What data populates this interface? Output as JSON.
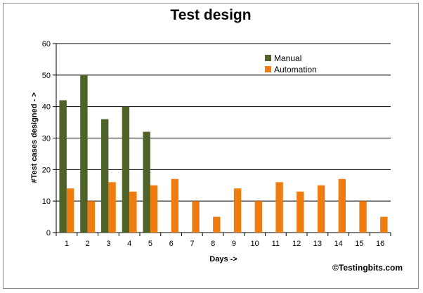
{
  "chart_data": {
    "type": "bar",
    "title": "Test design",
    "xlabel": "Days ->",
    "ylabel": "#Test cases designed - >",
    "ylim": [
      0,
      60
    ],
    "yticks": [
      0,
      10,
      20,
      30,
      40,
      50,
      60
    ],
    "grid": true,
    "legend_position": "top-right",
    "categories": [
      "1",
      "2",
      "3",
      "4",
      "5",
      "6",
      "7",
      "8",
      "9",
      "10",
      "11",
      "12",
      "13",
      "14",
      "15",
      "16"
    ],
    "series": [
      {
        "name": "Manual",
        "color": "#4f6228",
        "values": [
          42,
          50,
          36,
          40,
          32,
          null,
          null,
          null,
          null,
          null,
          null,
          null,
          null,
          null,
          null,
          null
        ]
      },
      {
        "name": "Automation",
        "color": "#f07c0f",
        "values": [
          14,
          10,
          16,
          13,
          15,
          17,
          10,
          5,
          14,
          10,
          16,
          13,
          15,
          17,
          10,
          5
        ]
      }
    ]
  },
  "watermark": "©Testingbits.com"
}
